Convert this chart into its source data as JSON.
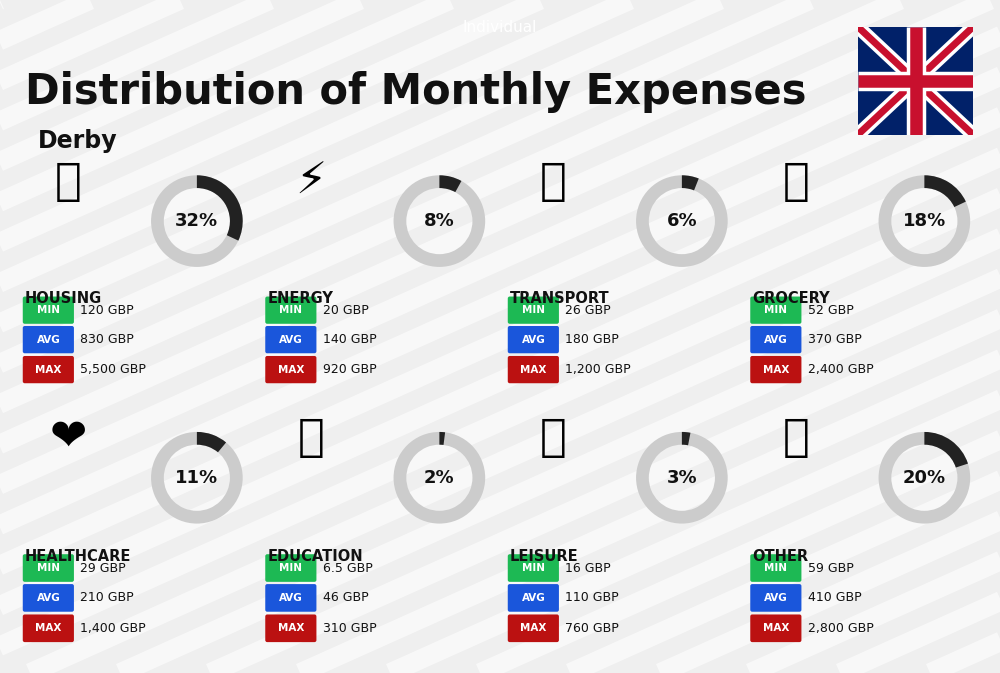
{
  "title": "Distribution of Monthly Expenses",
  "subtitle": "Derby",
  "tag": "Individual",
  "bg_color": "#efefef",
  "categories": [
    {
      "name": "HOUSING",
      "percent": 32,
      "min": "120 GBP",
      "avg": "830 GBP",
      "max": "5,500 GBP",
      "row": 0,
      "col": 0
    },
    {
      "name": "ENERGY",
      "percent": 8,
      "min": "20 GBP",
      "avg": "140 GBP",
      "max": "920 GBP",
      "row": 0,
      "col": 1
    },
    {
      "name": "TRANSPORT",
      "percent": 6,
      "min": "26 GBP",
      "avg": "180 GBP",
      "max": "1,200 GBP",
      "row": 0,
      "col": 2
    },
    {
      "name": "GROCERY",
      "percent": 18,
      "min": "52 GBP",
      "avg": "370 GBP",
      "max": "2,400 GBP",
      "row": 0,
      "col": 3
    },
    {
      "name": "HEALTHCARE",
      "percent": 11,
      "min": "29 GBP",
      "avg": "210 GBP",
      "max": "1,400 GBP",
      "row": 1,
      "col": 0
    },
    {
      "name": "EDUCATION",
      "percent": 2,
      "min": "6.5 GBP",
      "avg": "46 GBP",
      "max": "310 GBP",
      "row": 1,
      "col": 1
    },
    {
      "name": "LEISURE",
      "percent": 3,
      "min": "16 GBP",
      "avg": "110 GBP",
      "max": "760 GBP",
      "row": 1,
      "col": 2
    },
    {
      "name": "OTHER",
      "percent": 20,
      "min": "59 GBP",
      "avg": "410 GBP",
      "max": "2,800 GBP",
      "row": 1,
      "col": 3
    }
  ],
  "color_min": "#1db954",
  "color_avg": "#1a56db",
  "color_max": "#bb1111",
  "color_dark": "#111111",
  "color_ring_dark": "#222222",
  "color_ring_light": "#cccccc",
  "stripe_color": "#e0e0e0",
  "tag_bg": "#111111",
  "tag_color": "#ffffff",
  "flag_navy": "#012169",
  "flag_red": "#C8102E",
  "flag_white": "#ffffff"
}
